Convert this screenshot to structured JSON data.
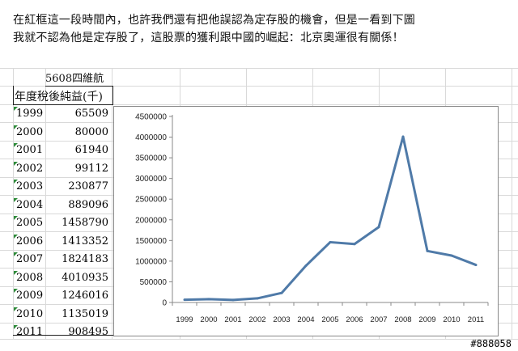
{
  "caption": {
    "line1": "在紅框這一段時間內，也許我們還有把他誤認為定存股的機會，但是一看到下圖",
    "line2": "我就不認為他是定存股了，這股票的獲利跟中國的崛起：北京奧運很有關係！"
  },
  "table": {
    "stock_label": "5608四維航",
    "column_header": "年度稅後純益(千)",
    "rows": [
      {
        "year": "1999",
        "value": "65509"
      },
      {
        "year": "2000",
        "value": "80000"
      },
      {
        "year": "2001",
        "value": "61940"
      },
      {
        "year": "2002",
        "value": "99112"
      },
      {
        "year": "2003",
        "value": "230877"
      },
      {
        "year": "2004",
        "value": "889096"
      },
      {
        "year": "2005",
        "value": "1458790"
      },
      {
        "year": "2006",
        "value": "1413352"
      },
      {
        "year": "2007",
        "value": "1824183"
      },
      {
        "year": "2008",
        "value": "4010935"
      },
      {
        "year": "2009",
        "value": "1246016"
      },
      {
        "year": "2010",
        "value": "1135019"
      },
      {
        "year": "2011",
        "value": "908495"
      }
    ]
  },
  "chart_data": {
    "type": "line",
    "categories": [
      "1999",
      "2000",
      "2001",
      "2002",
      "2003",
      "2004",
      "2005",
      "2006",
      "2007",
      "2008",
      "2009",
      "2010",
      "2011"
    ],
    "series": [
      {
        "values": [
          65509,
          80000,
          61940,
          99112,
          230877,
          889096,
          1458790,
          1413352,
          1824183,
          4010935,
          1246016,
          1135019,
          908495
        ]
      }
    ],
    "ylim": [
      0,
      4500000
    ],
    "yticks": [
      "0",
      "500000",
      "1000000",
      "1500000",
      "2000000",
      "2500000",
      "3000000",
      "3500000",
      "4000000",
      "4500000"
    ],
    "title": "",
    "xlabel": "",
    "ylabel": "",
    "grid": false,
    "legend": "none",
    "line_color": "#4f7aa8"
  },
  "watermark": "#888058"
}
